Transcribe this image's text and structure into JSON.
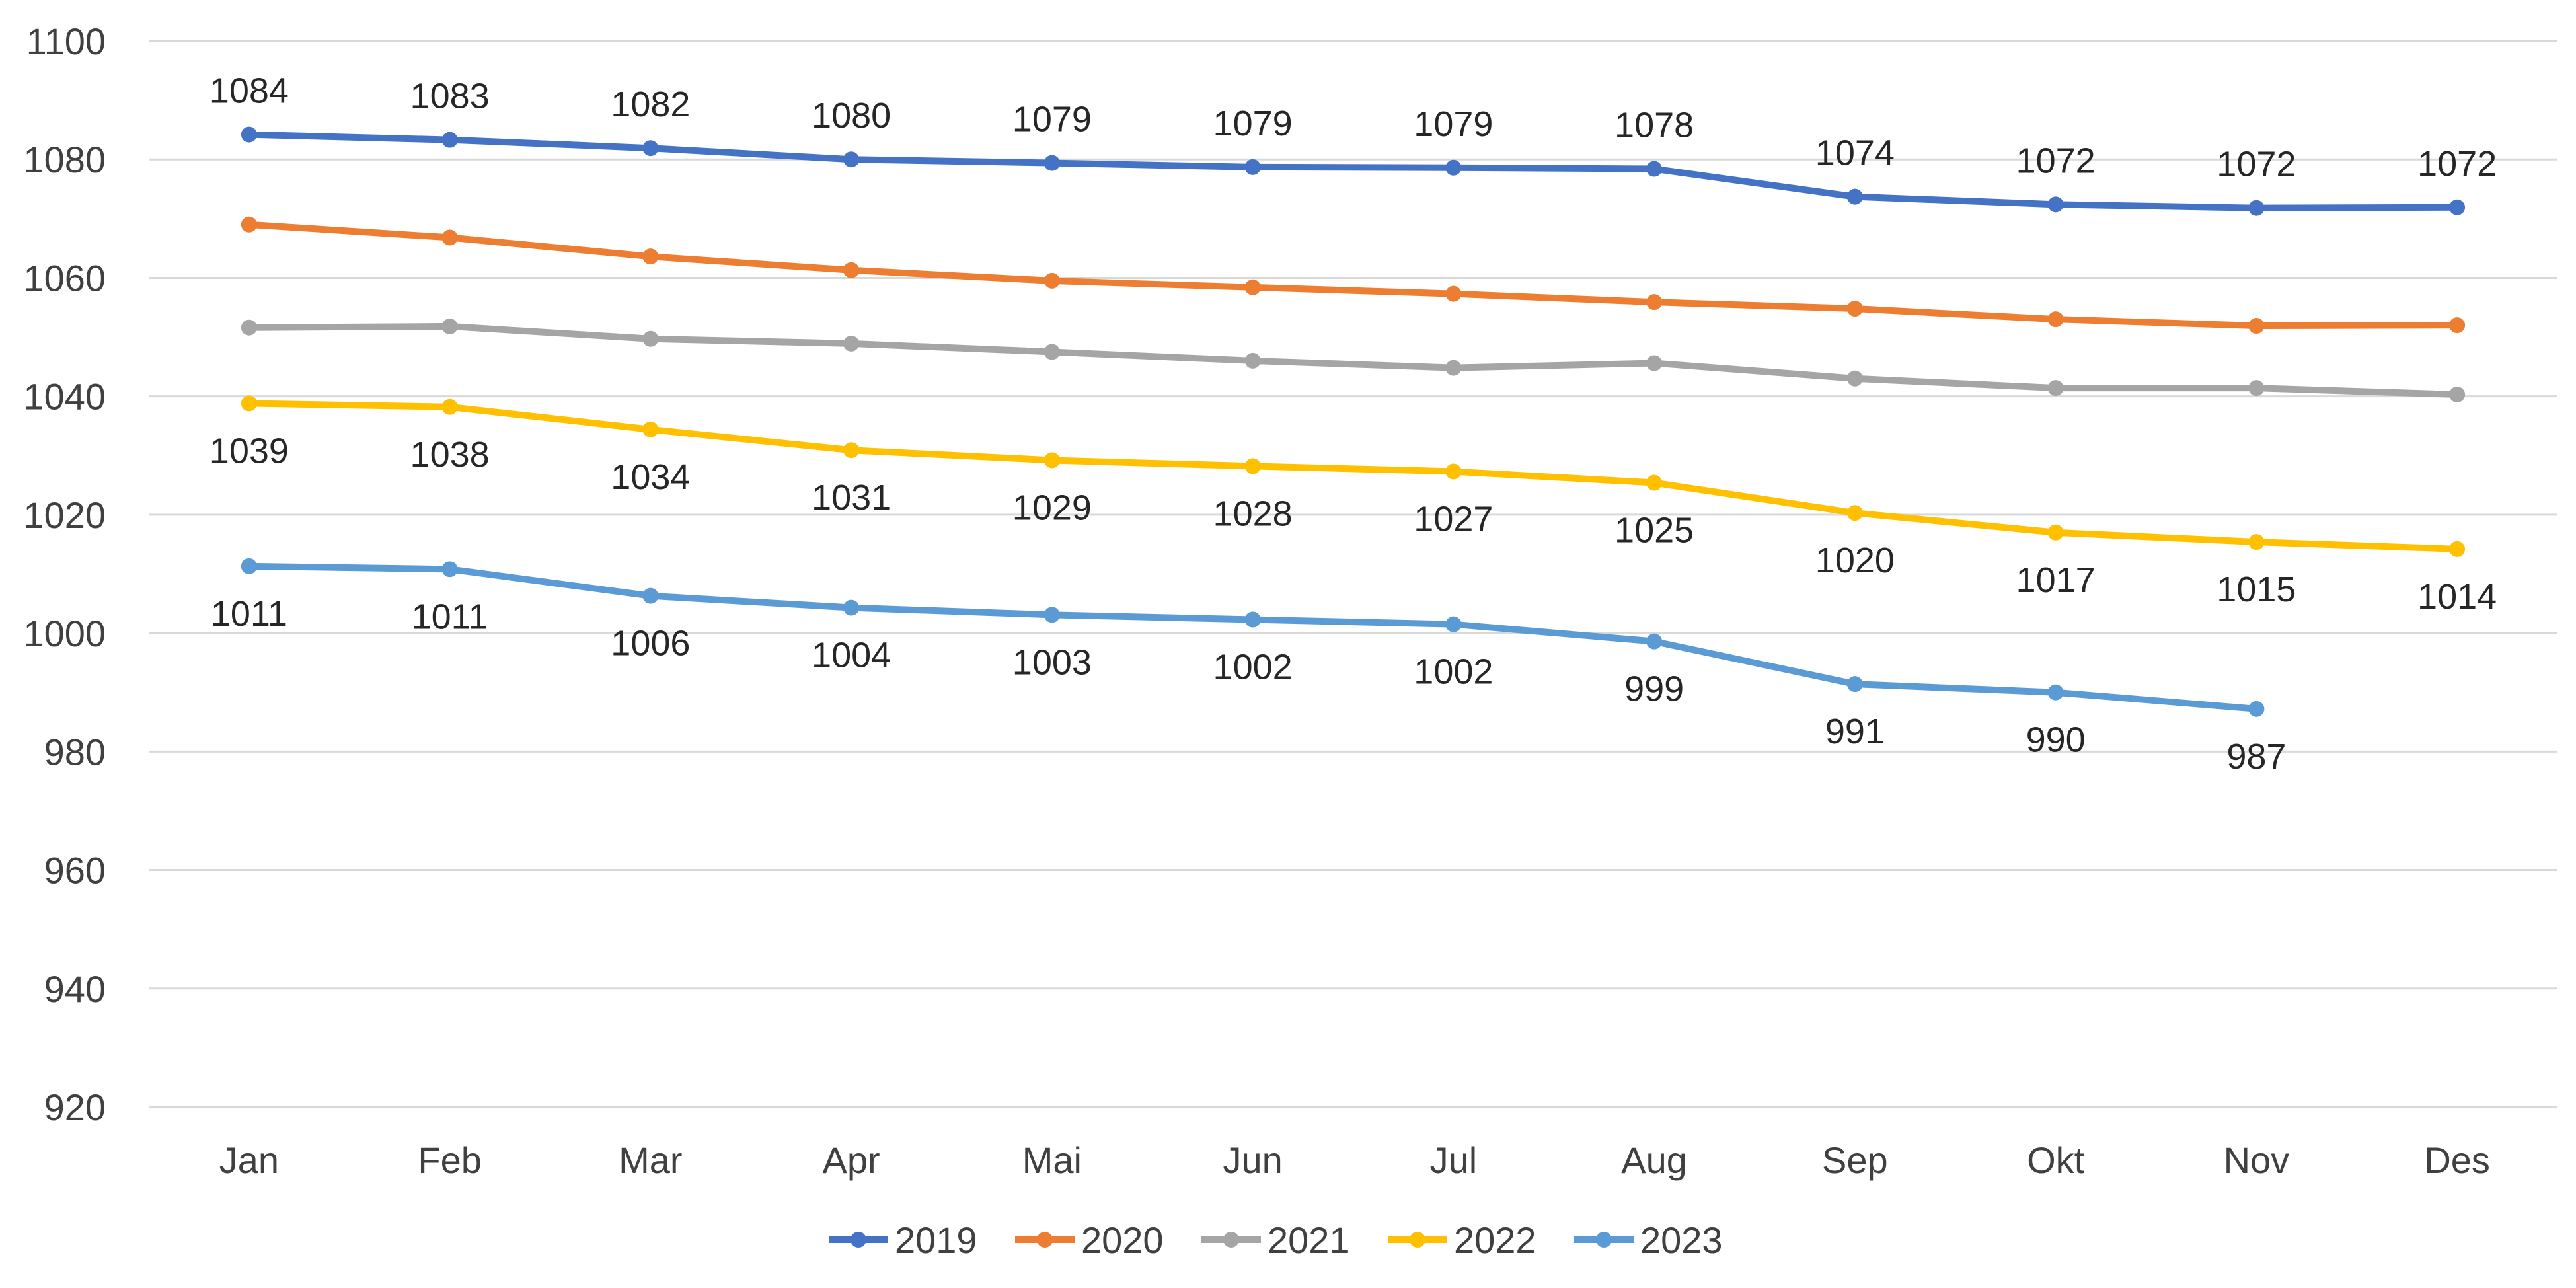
{
  "chart_data": {
    "type": "line",
    "title": "",
    "xlabel": "",
    "ylabel": "",
    "categories": [
      "Jan",
      "Feb",
      "Mar",
      "Apr",
      "Mai",
      "Jun",
      "Jul",
      "Aug",
      "Sep",
      "Okt",
      "Nov",
      "Des"
    ],
    "ylim": [
      920,
      1100
    ],
    "yticks": [
      920,
      940,
      960,
      980,
      1000,
      1020,
      1040,
      1060,
      1080,
      1100
    ],
    "grid": true,
    "legend_position": "bottom",
    "series": [
      {
        "name": "2019",
        "color": "#4472C4",
        "values": [
          1084.2,
          1083.3,
          1081.9,
          1080.0,
          1079.4,
          1078.7,
          1078.6,
          1078.4,
          1073.7,
          1072.4,
          1071.8,
          1071.9
        ],
        "labels": [
          "1084",
          "1083",
          "1082",
          "1080",
          "1079",
          "1079",
          "1079",
          "1078",
          "1074",
          "1072",
          "1072",
          "1072"
        ],
        "label_position": "above"
      },
      {
        "name": "2020",
        "color": "#ED7D31",
        "values": [
          1069.0,
          1066.8,
          1063.6,
          1061.3,
          1059.5,
          1058.4,
          1057.3,
          1055.9,
          1054.8,
          1053.0,
          1051.9,
          1052.0
        ],
        "labels": [],
        "label_position": "none"
      },
      {
        "name": "2021",
        "color": "#A5A5A5",
        "values": [
          1051.6,
          1051.8,
          1049.7,
          1048.9,
          1047.5,
          1046.0,
          1044.8,
          1045.6,
          1043.0,
          1041.4,
          1041.4,
          1040.3
        ],
        "labels": [],
        "label_position": "none"
      },
      {
        "name": "2022",
        "color": "#FFC000",
        "values": [
          1038.8,
          1038.2,
          1034.4,
          1030.9,
          1029.2,
          1028.2,
          1027.3,
          1025.4,
          1020.3,
          1017.0,
          1015.4,
          1014.2
        ],
        "labels": [
          "1039",
          "1038",
          "1034",
          "1031",
          "1029",
          "1028",
          "1027",
          "1025",
          "1020",
          "1017",
          "1015",
          "1014"
        ],
        "label_position": "below"
      },
      {
        "name": "2023",
        "color": "#5B9BD5",
        "values": [
          1011.3,
          1010.8,
          1006.3,
          1004.3,
          1003.1,
          1002.3,
          1001.5,
          998.6,
          991.4,
          990.0,
          987.2,
          null
        ],
        "labels": [
          "1011",
          "1011",
          "1006",
          "1004",
          "1003",
          "1002",
          "1002",
          "999",
          "991",
          "990",
          "987",
          ""
        ],
        "label_position": "below"
      }
    ]
  }
}
